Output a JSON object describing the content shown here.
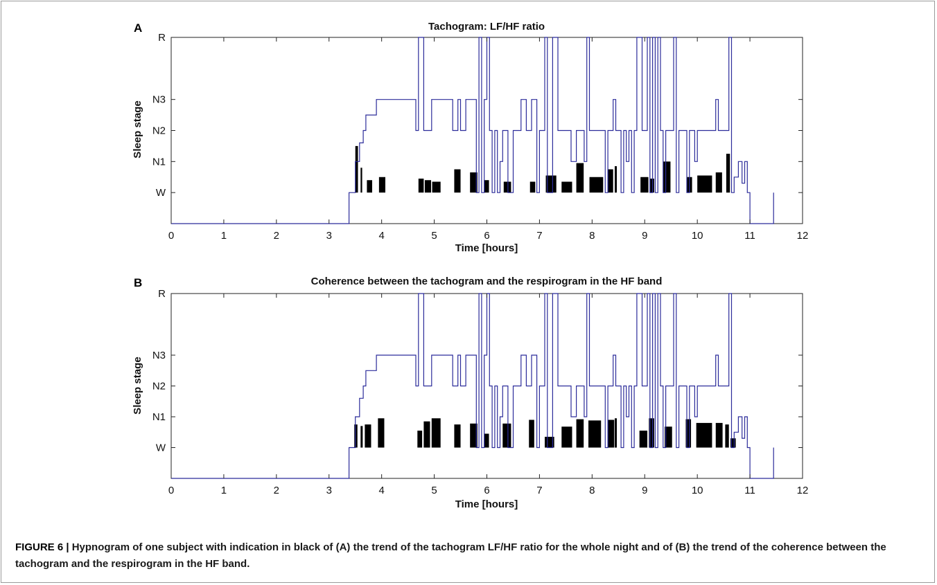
{
  "caption": {
    "label": "FIGURE 6 |",
    "text": "Hypnogram of one subject with indication in black of (A) the trend of the tachogram LF/HF ratio for the whole night and of (B) the trend of the coherence between the tachogram and the respirogram in the HF band."
  },
  "colors": {
    "hypnogram": "#2b2b9a",
    "bars": "#000000",
    "axes": "#222222"
  },
  "chart_data": [
    {
      "panel": "A",
      "type": "line",
      "title": "Tachogram: LF/HF ratio",
      "xlabel": "Time [hours]",
      "ylabel": "Sleep stage",
      "xlim": [
        0,
        12
      ],
      "ylim": [
        -1,
        5
      ],
      "xticks": [
        0,
        1,
        2,
        3,
        4,
        5,
        6,
        7,
        8,
        9,
        10,
        11,
        12
      ],
      "yticks": [
        {
          "value": 0,
          "label": "W"
        },
        {
          "value": 1,
          "label": "N1"
        },
        {
          "value": 2,
          "label": "N2"
        },
        {
          "value": 3,
          "label": "N3"
        },
        {
          "value": 5,
          "label": "R"
        }
      ],
      "grid": false,
      "hypnogram": [
        [
          0,
          -1
        ],
        [
          3.38,
          -1
        ],
        [
          3.38,
          0
        ],
        [
          3.5,
          0
        ],
        [
          3.5,
          1
        ],
        [
          3.58,
          1
        ],
        [
          3.58,
          1.6
        ],
        [
          3.65,
          1.6
        ],
        [
          3.65,
          2
        ],
        [
          3.7,
          2
        ],
        [
          3.7,
          2.5
        ],
        [
          3.9,
          2.5
        ],
        [
          3.9,
          3
        ],
        [
          4.65,
          3
        ],
        [
          4.65,
          2
        ],
        [
          4.7,
          2
        ],
        [
          4.7,
          5
        ],
        [
          4.8,
          5
        ],
        [
          4.8,
          2
        ],
        [
          4.95,
          2
        ],
        [
          4.95,
          3
        ],
        [
          5.35,
          3
        ],
        [
          5.35,
          2
        ],
        [
          5.45,
          2
        ],
        [
          5.45,
          3
        ],
        [
          5.5,
          3
        ],
        [
          5.5,
          2
        ],
        [
          5.6,
          2
        ],
        [
          5.6,
          3
        ],
        [
          5.8,
          3
        ],
        [
          5.8,
          0
        ],
        [
          5.85,
          0
        ],
        [
          5.85,
          5
        ],
        [
          5.9,
          5
        ],
        [
          5.9,
          0
        ],
        [
          5.95,
          0
        ],
        [
          5.95,
          3
        ],
        [
          6.0,
          3
        ],
        [
          6.0,
          5
        ],
        [
          6.05,
          5
        ],
        [
          6.05,
          2
        ],
        [
          6.1,
          2
        ],
        [
          6.1,
          0
        ],
        [
          6.15,
          0
        ],
        [
          6.15,
          2
        ],
        [
          6.2,
          2
        ],
        [
          6.2,
          0
        ],
        [
          6.25,
          0
        ],
        [
          6.25,
          1
        ],
        [
          6.3,
          1
        ],
        [
          6.3,
          2
        ],
        [
          6.4,
          2
        ],
        [
          6.4,
          0
        ],
        [
          6.5,
          0
        ],
        [
          6.5,
          2
        ],
        [
          6.65,
          2
        ],
        [
          6.65,
          3
        ],
        [
          6.75,
          3
        ],
        [
          6.75,
          2
        ],
        [
          6.85,
          2
        ],
        [
          6.85,
          3
        ],
        [
          6.95,
          3
        ],
        [
          6.95,
          0
        ],
        [
          7.0,
          0
        ],
        [
          7.0,
          2
        ],
        [
          7.1,
          2
        ],
        [
          7.1,
          5
        ],
        [
          7.15,
          5
        ],
        [
          7.15,
          0
        ],
        [
          7.25,
          0
        ],
        [
          7.25,
          5
        ],
        [
          7.35,
          5
        ],
        [
          7.35,
          2
        ],
        [
          7.6,
          2
        ],
        [
          7.6,
          1
        ],
        [
          7.7,
          1
        ],
        [
          7.7,
          2
        ],
        [
          7.85,
          2
        ],
        [
          7.85,
          1
        ],
        [
          7.9,
          1
        ],
        [
          7.9,
          5
        ],
        [
          7.95,
          5
        ],
        [
          7.95,
          2
        ],
        [
          8.25,
          2
        ],
        [
          8.25,
          0
        ],
        [
          8.3,
          0
        ],
        [
          8.3,
          2
        ],
        [
          8.4,
          2
        ],
        [
          8.4,
          3
        ],
        [
          8.45,
          3
        ],
        [
          8.45,
          2
        ],
        [
          8.55,
          2
        ],
        [
          8.55,
          0
        ],
        [
          8.6,
          0
        ],
        [
          8.6,
          2
        ],
        [
          8.65,
          2
        ],
        [
          8.65,
          1
        ],
        [
          8.7,
          1
        ],
        [
          8.7,
          2
        ],
        [
          8.75,
          2
        ],
        [
          8.75,
          0
        ],
        [
          8.8,
          0
        ],
        [
          8.8,
          2
        ],
        [
          8.85,
          2
        ],
        [
          8.85,
          5
        ],
        [
          8.95,
          5
        ],
        [
          8.95,
          2
        ],
        [
          9.05,
          2
        ],
        [
          9.05,
          5
        ],
        [
          9.1,
          5
        ],
        [
          9.1,
          0
        ],
        [
          9.15,
          0
        ],
        [
          9.15,
          5
        ],
        [
          9.2,
          5
        ],
        [
          9.2,
          0
        ],
        [
          9.25,
          0
        ],
        [
          9.25,
          5
        ],
        [
          9.3,
          5
        ],
        [
          9.3,
          2
        ],
        [
          9.35,
          2
        ],
        [
          9.35,
          0
        ],
        [
          9.4,
          0
        ],
        [
          9.4,
          2
        ],
        [
          9.55,
          2
        ],
        [
          9.55,
          5
        ],
        [
          9.6,
          5
        ],
        [
          9.6,
          0
        ],
        [
          9.65,
          0
        ],
        [
          9.65,
          2
        ],
        [
          9.8,
          2
        ],
        [
          9.8,
          0
        ],
        [
          9.85,
          0
        ],
        [
          9.85,
          2
        ],
        [
          9.95,
          2
        ],
        [
          9.95,
          1
        ],
        [
          10.0,
          1
        ],
        [
          10.0,
          2
        ],
        [
          10.35,
          2
        ],
        [
          10.35,
          3
        ],
        [
          10.4,
          3
        ],
        [
          10.4,
          2
        ],
        [
          10.6,
          2
        ],
        [
          10.6,
          5
        ],
        [
          10.65,
          5
        ],
        [
          10.65,
          0
        ],
        [
          10.7,
          0
        ],
        [
          10.7,
          0.5
        ],
        [
          10.78,
          0.5
        ],
        [
          10.78,
          1
        ],
        [
          10.85,
          1
        ],
        [
          10.85,
          0.3
        ],
        [
          10.9,
          0.3
        ],
        [
          10.9,
          1
        ],
        [
          10.95,
          1
        ],
        [
          10.95,
          0
        ],
        [
          11.0,
          0
        ],
        [
          11.0,
          -1
        ],
        [
          11.45,
          -1
        ],
        [
          11.45,
          0
        ]
      ],
      "bars": [
        {
          "x": 3.5,
          "w": 0.05,
          "v": 1.5
        },
        {
          "x": 3.6,
          "w": 0.03,
          "v": 0.8
        },
        {
          "x": 3.72,
          "w": 0.1,
          "v": 0.4
        },
        {
          "x": 3.95,
          "w": 0.12,
          "v": 0.5
        },
        {
          "x": 4.7,
          "w": 0.1,
          "v": 0.45
        },
        {
          "x": 4.82,
          "w": 0.12,
          "v": 0.4
        },
        {
          "x": 4.96,
          "w": 0.16,
          "v": 0.35
        },
        {
          "x": 5.38,
          "w": 0.12,
          "v": 0.75
        },
        {
          "x": 5.68,
          "w": 0.14,
          "v": 0.65
        },
        {
          "x": 5.95,
          "w": 0.09,
          "v": 0.4
        },
        {
          "x": 6.32,
          "w": 0.14,
          "v": 0.35
        },
        {
          "x": 6.82,
          "w": 0.1,
          "v": 0.35
        },
        {
          "x": 7.12,
          "w": 0.2,
          "v": 0.55
        },
        {
          "x": 7.42,
          "w": 0.2,
          "v": 0.35
        },
        {
          "x": 7.7,
          "w": 0.14,
          "v": 0.95
        },
        {
          "x": 7.95,
          "w": 0.26,
          "v": 0.5
        },
        {
          "x": 8.3,
          "w": 0.1,
          "v": 0.75
        },
        {
          "x": 8.43,
          "w": 0.04,
          "v": 0.85
        },
        {
          "x": 8.92,
          "w": 0.15,
          "v": 0.5
        },
        {
          "x": 9.1,
          "w": 0.08,
          "v": 0.45
        },
        {
          "x": 9.35,
          "w": 0.14,
          "v": 1.0
        },
        {
          "x": 9.8,
          "w": 0.1,
          "v": 0.5
        },
        {
          "x": 10.0,
          "w": 0.28,
          "v": 0.55
        },
        {
          "x": 10.35,
          "w": 0.12,
          "v": 0.65
        },
        {
          "x": 10.55,
          "w": 0.07,
          "v": 1.25
        }
      ]
    },
    {
      "panel": "B",
      "type": "line",
      "title": "Coherence between the tachogram and the respirogram in the HF band",
      "xlabel": "Time [hours]",
      "ylabel": "Sleep stage",
      "xlim": [
        0,
        12
      ],
      "ylim": [
        -1,
        5
      ],
      "xticks": [
        0,
        1,
        2,
        3,
        4,
        5,
        6,
        7,
        8,
        9,
        10,
        11,
        12
      ],
      "yticks": [
        {
          "value": 0,
          "label": "W"
        },
        {
          "value": 1,
          "label": "N1"
        },
        {
          "value": 2,
          "label": "N2"
        },
        {
          "value": 3,
          "label": "N3"
        },
        {
          "value": 5,
          "label": "R"
        }
      ],
      "grid": false,
      "hypnogram": "same-as-A",
      "bars": [
        {
          "x": 3.48,
          "w": 0.06,
          "v": 0.75
        },
        {
          "x": 3.6,
          "w": 0.04,
          "v": 0.7
        },
        {
          "x": 3.68,
          "w": 0.12,
          "v": 0.75
        },
        {
          "x": 3.93,
          "w": 0.12,
          "v": 0.95
        },
        {
          "x": 4.68,
          "w": 0.09,
          "v": 0.55
        },
        {
          "x": 4.8,
          "w": 0.12,
          "v": 0.85
        },
        {
          "x": 4.95,
          "w": 0.17,
          "v": 0.95
        },
        {
          "x": 5.38,
          "w": 0.12,
          "v": 0.75
        },
        {
          "x": 5.68,
          "w": 0.14,
          "v": 0.78
        },
        {
          "x": 5.95,
          "w": 0.09,
          "v": 0.45
        },
        {
          "x": 6.3,
          "w": 0.16,
          "v": 0.78
        },
        {
          "x": 6.8,
          "w": 0.1,
          "v": 0.9
        },
        {
          "x": 7.1,
          "w": 0.18,
          "v": 0.35
        },
        {
          "x": 7.42,
          "w": 0.2,
          "v": 0.68
        },
        {
          "x": 7.7,
          "w": 0.14,
          "v": 0.92
        },
        {
          "x": 7.93,
          "w": 0.24,
          "v": 0.88
        },
        {
          "x": 8.3,
          "w": 0.12,
          "v": 0.9
        },
        {
          "x": 8.43,
          "w": 0.04,
          "v": 0.95
        },
        {
          "x": 8.9,
          "w": 0.15,
          "v": 0.55
        },
        {
          "x": 9.08,
          "w": 0.1,
          "v": 0.95
        },
        {
          "x": 9.38,
          "w": 0.14,
          "v": 0.68
        },
        {
          "x": 9.78,
          "w": 0.1,
          "v": 0.92
        },
        {
          "x": 9.98,
          "w": 0.3,
          "v": 0.8
        },
        {
          "x": 10.35,
          "w": 0.13,
          "v": 0.8
        },
        {
          "x": 10.53,
          "w": 0.07,
          "v": 0.75
        },
        {
          "x": 10.63,
          "w": 0.1,
          "v": 0.3
        }
      ]
    }
  ]
}
